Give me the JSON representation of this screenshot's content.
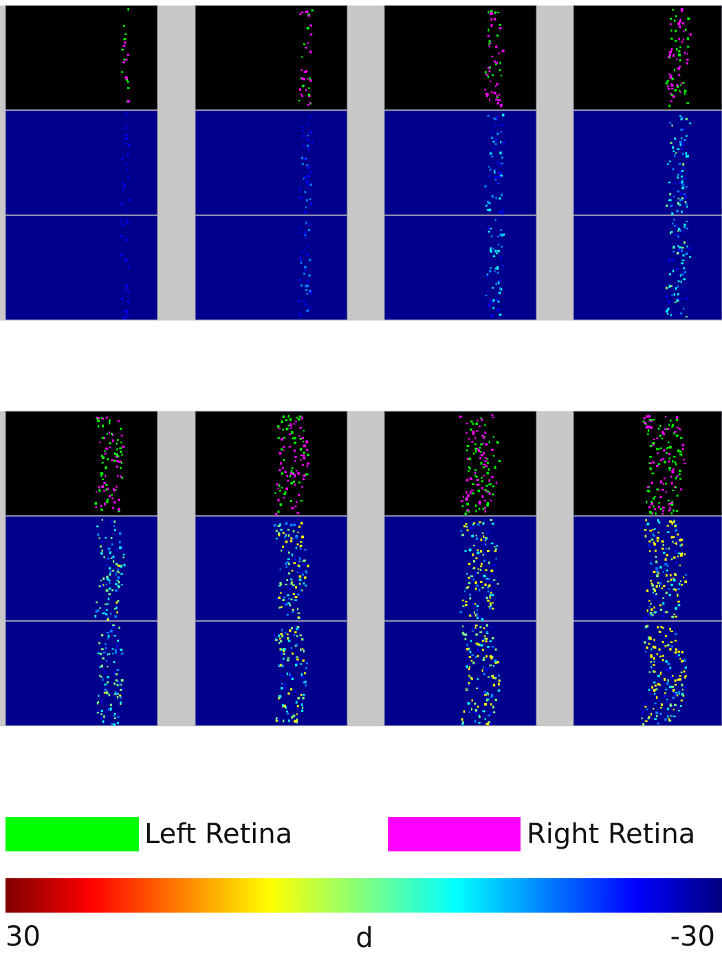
{
  "legend": {
    "items": [
      {
        "label": "Left Retina",
        "color": "#00ff00"
      },
      {
        "label": "Right Retina",
        "color": "#ff00ff"
      }
    ]
  },
  "colorbar": {
    "label": "d",
    "min": 30,
    "max": -30
  }
}
